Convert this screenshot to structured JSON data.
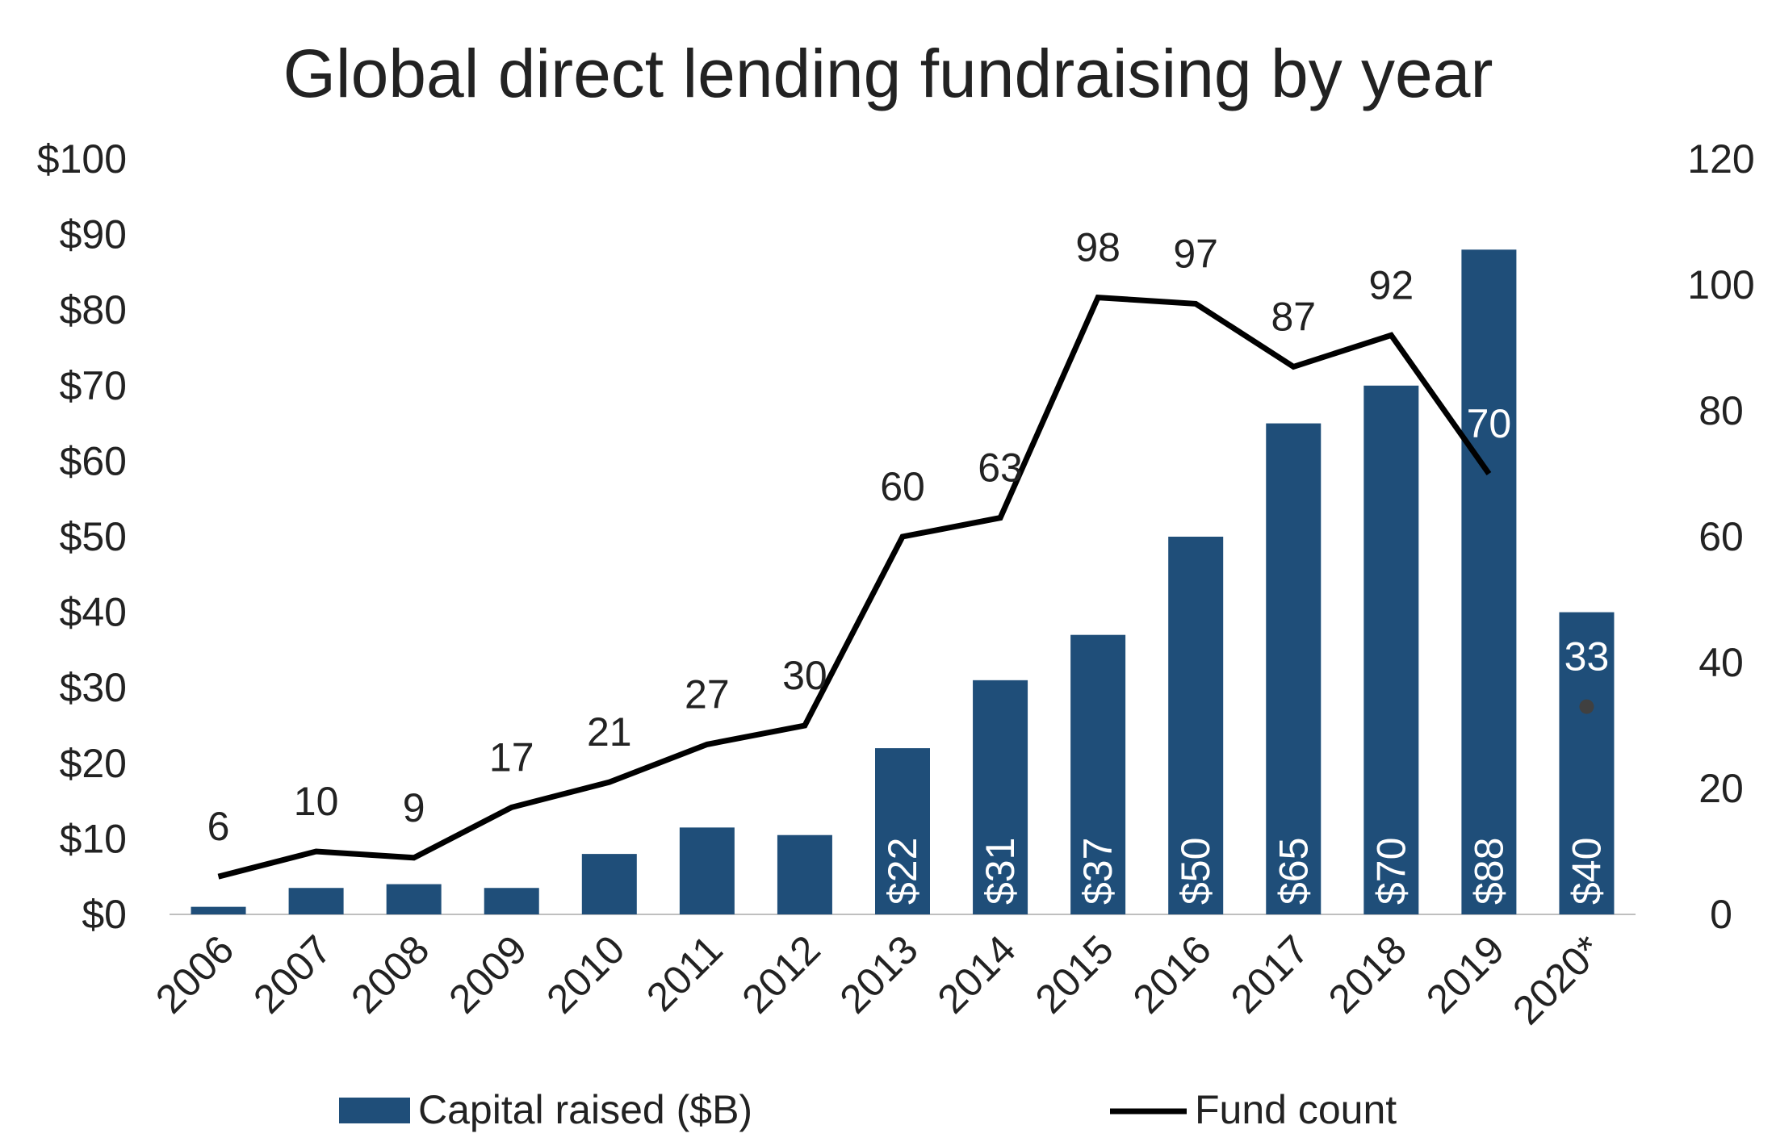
{
  "chart_data": {
    "type": "bar+line",
    "title": "Global direct lending fundraising by year",
    "categories": [
      "2006",
      "2007",
      "2008",
      "2009",
      "2010",
      "2011",
      "2012",
      "2013",
      "2014",
      "2015",
      "2016",
      "2017",
      "2018",
      "2019",
      "2020*"
    ],
    "series": [
      {
        "name": "Capital raised ($B)",
        "type": "bar",
        "axis": "left",
        "color": "#1f4e79",
        "values": [
          1,
          3.5,
          4,
          3.5,
          8,
          11.5,
          10.5,
          22,
          31,
          37,
          50,
          65,
          70,
          88,
          40
        ],
        "data_labels": [
          null,
          null,
          null,
          null,
          null,
          null,
          null,
          "$22",
          "$31",
          "$37",
          "$50",
          "$65",
          "$70",
          "$88",
          "$40"
        ]
      },
      {
        "name": "Fund count",
        "type": "line",
        "axis": "right",
        "color": "#000000",
        "values": [
          6,
          10,
          9,
          17,
          21,
          27,
          30,
          60,
          63,
          98,
          97,
          87,
          92,
          70,
          33
        ],
        "data_labels": [
          "6",
          "10",
          "9",
          "17",
          "21",
          "27",
          "30",
          "60",
          "63",
          "98",
          "97",
          "87",
          "92",
          "70",
          "33"
        ],
        "connected_through_index": 13,
        "marker_only_indices": [
          14
        ],
        "marker_color": "#404040"
      }
    ],
    "y_left": {
      "ylim": [
        0,
        100
      ],
      "ticks": [
        0,
        10,
        20,
        30,
        40,
        50,
        60,
        70,
        80,
        90,
        100
      ],
      "tick_labels": [
        "$0",
        "$10",
        "$20",
        "$30",
        "$40",
        "$50",
        "$60",
        "$70",
        "$80",
        "$90",
        "$100"
      ]
    },
    "y_right": {
      "ylim": [
        0,
        120
      ],
      "ticks": [
        0,
        20,
        40,
        60,
        80,
        100,
        120
      ],
      "tick_labels": [
        "0",
        "20",
        "40",
        "60",
        "80",
        "100",
        "120"
      ]
    },
    "xlabel": "",
    "ylabel": "",
    "grid": false,
    "legend_position": "bottom"
  }
}
